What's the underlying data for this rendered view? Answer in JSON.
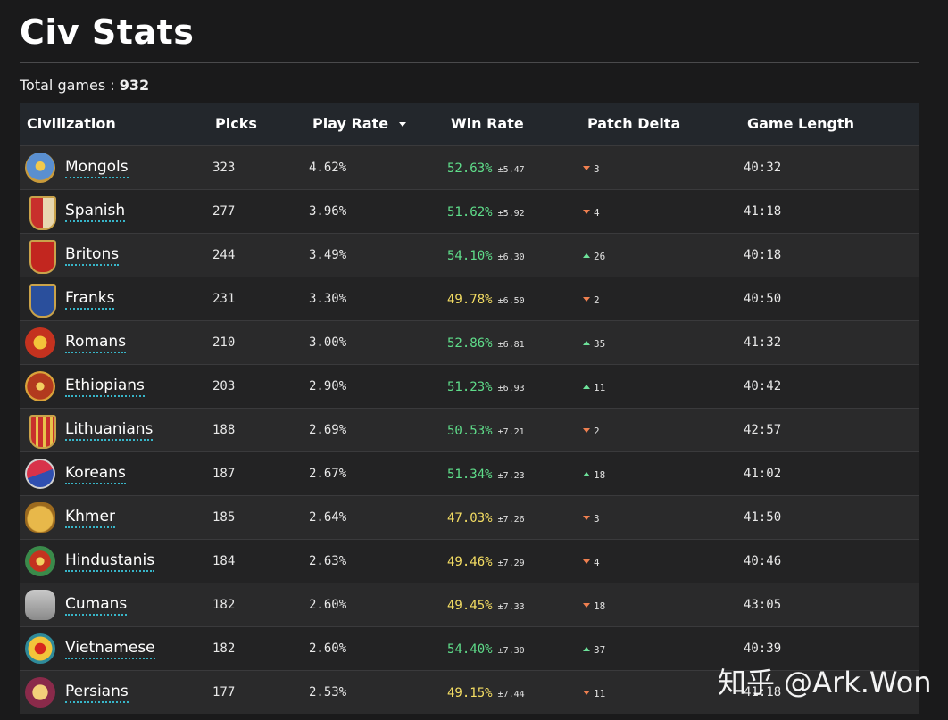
{
  "page": {
    "title": "Civ Stats",
    "total_label": "Total games : ",
    "total_value": "932"
  },
  "table": {
    "headers": {
      "civilization": "Civilization",
      "picks": "Picks",
      "play_rate": "Play Rate",
      "win_rate": "Win Rate",
      "patch_delta": "Patch Delta",
      "game_length": "Game Length"
    },
    "sorted_by": "play_rate",
    "rows": [
      {
        "civ": "Mongols",
        "icon": "mongols-emblem-icon",
        "picks": "323",
        "play_rate": "4.62%",
        "win_rate": "52.63%",
        "win_color": "#5fdd8a",
        "err": "±5.47",
        "delta_dir": "down",
        "delta": "3",
        "length": "40:32"
      },
      {
        "civ": "Spanish",
        "icon": "spanish-shield-icon",
        "picks": "277",
        "play_rate": "3.96%",
        "win_rate": "51.62%",
        "win_color": "#5fdd8a",
        "err": "±5.92",
        "delta_dir": "down",
        "delta": "4",
        "length": "41:18"
      },
      {
        "civ": "Britons",
        "icon": "britons-shield-icon",
        "picks": "244",
        "play_rate": "3.49%",
        "win_rate": "54.10%",
        "win_color": "#5fdd8a",
        "err": "±6.30",
        "delta_dir": "up",
        "delta": "26",
        "length": "40:18"
      },
      {
        "civ": "Franks",
        "icon": "franks-shield-icon",
        "picks": "231",
        "play_rate": "3.30%",
        "win_rate": "49.78%",
        "win_color": "#f4dd63",
        "err": "±6.50",
        "delta_dir": "down",
        "delta": "2",
        "length": "40:50"
      },
      {
        "civ": "Romans",
        "icon": "romans-eagle-icon",
        "picks": "210",
        "play_rate": "3.00%",
        "win_rate": "52.86%",
        "win_color": "#5fdd8a",
        "err": "±6.81",
        "delta_dir": "up",
        "delta": "35",
        "length": "41:32"
      },
      {
        "civ": "Ethiopians",
        "icon": "ethiopians-emblem-icon",
        "picks": "203",
        "play_rate": "2.90%",
        "win_rate": "51.23%",
        "win_color": "#5fdd8a",
        "err": "±6.93",
        "delta_dir": "up",
        "delta": "11",
        "length": "40:42"
      },
      {
        "civ": "Lithuanians",
        "icon": "lithuanians-shield-icon",
        "picks": "188",
        "play_rate": "2.69%",
        "win_rate": "50.53%",
        "win_color": "#5fdd8a",
        "err": "±7.21",
        "delta_dir": "down",
        "delta": "2",
        "length": "42:57"
      },
      {
        "civ": "Koreans",
        "icon": "koreans-emblem-icon",
        "picks": "187",
        "play_rate": "2.67%",
        "win_rate": "51.34%",
        "win_color": "#5fdd8a",
        "err": "±7.23",
        "delta_dir": "up",
        "delta": "18",
        "length": "41:02"
      },
      {
        "civ": "Khmer",
        "icon": "khmer-face-icon",
        "picks": "185",
        "play_rate": "2.64%",
        "win_rate": "47.03%",
        "win_color": "#f4dd63",
        "err": "±7.26",
        "delta_dir": "down",
        "delta": "3",
        "length": "41:50"
      },
      {
        "civ": "Hindustanis",
        "icon": "hindustanis-emblem-icon",
        "picks": "184",
        "play_rate": "2.63%",
        "win_rate": "49.46%",
        "win_color": "#f4dd63",
        "err": "±7.29",
        "delta_dir": "down",
        "delta": "4",
        "length": "40:46"
      },
      {
        "civ": "Cumans",
        "icon": "cumans-mask-icon",
        "picks": "182",
        "play_rate": "2.60%",
        "win_rate": "49.45%",
        "win_color": "#f4dd63",
        "err": "±7.33",
        "delta_dir": "down",
        "delta": "18",
        "length": "43:05"
      },
      {
        "civ": "Vietnamese",
        "icon": "vietnamese-emblem-icon",
        "picks": "182",
        "play_rate": "2.60%",
        "win_rate": "54.40%",
        "win_color": "#5fdd8a",
        "err": "±7.30",
        "delta_dir": "up",
        "delta": "37",
        "length": "40:39"
      },
      {
        "civ": "Persians",
        "icon": "persians-emblem-icon",
        "picks": "177",
        "play_rate": "2.53%",
        "win_rate": "49.15%",
        "win_color": "#f4dd63",
        "err": "±7.44",
        "delta_dir": "down",
        "delta": "11",
        "length": "41:18"
      }
    ]
  },
  "colors": {
    "background": "#1a1a1b",
    "header_bg": "#23272c",
    "win_good": "#5fdd8a",
    "win_neutral": "#f4dd63",
    "delta_up": "#6de29a",
    "delta_down": "#f08050",
    "link_underline": "#38b6c9"
  },
  "watermark": "知乎 @Ark.Won"
}
